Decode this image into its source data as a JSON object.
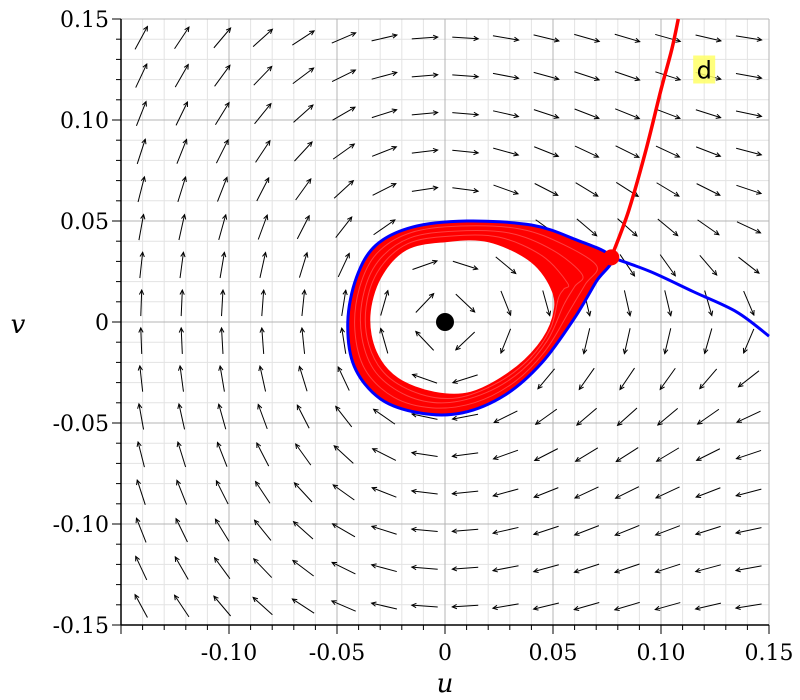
{
  "chart_data": {
    "type": "phase-portrait",
    "xlabel": "u",
    "ylabel": "v",
    "xlim": [
      -0.15,
      0.15
    ],
    "ylim": [
      -0.15,
      0.15
    ],
    "x_ticks": [
      {
        "value": -0.1,
        "label": "-0.10"
      },
      {
        "value": -0.05,
        "label": "-0.05"
      },
      {
        "value": 0,
        "label": "0"
      },
      {
        "value": 0.05,
        "label": "0.05"
      },
      {
        "value": 0.1,
        "label": "0.10"
      },
      {
        "value": 0.15,
        "label": "0.15"
      }
    ],
    "y_ticks": [
      {
        "value": 0.15,
        "label": "0.15"
      },
      {
        "value": 0.1,
        "label": "0.10"
      },
      {
        "value": 0.05,
        "label": "0.05"
      },
      {
        "value": 0,
        "label": "0"
      },
      {
        "value": -0.05,
        "label": "-0.05"
      },
      {
        "value": -0.1,
        "label": "-0.10"
      },
      {
        "value": -0.15,
        "label": "-0.15"
      }
    ],
    "grid": true,
    "equilibrium": {
      "u": 0,
      "v": 0,
      "color": "#000000"
    },
    "saddle_point": {
      "u": 0.077,
      "v": 0.032,
      "color": "#ff0000"
    },
    "annotation": {
      "text": "d",
      "u": 0.12,
      "v": 0.125,
      "background": "#ffff66"
    },
    "series": [
      {
        "style": "loop",
        "color": "#0000ff",
        "points": [
          [
            0.077,
            0.032
          ],
          [
            0.06,
            0.041
          ],
          [
            0.04,
            0.048
          ],
          [
            0.01,
            0.05
          ],
          [
            -0.015,
            0.047
          ],
          [
            -0.032,
            0.038
          ],
          [
            -0.041,
            0.022
          ],
          [
            -0.045,
            0.0
          ],
          [
            -0.042,
            -0.022
          ],
          [
            -0.03,
            -0.038
          ],
          [
            -0.012,
            -0.045
          ],
          [
            0.008,
            -0.045
          ],
          [
            0.028,
            -0.036
          ],
          [
            0.045,
            -0.02
          ],
          [
            0.06,
            0.002
          ],
          [
            0.07,
            0.02
          ],
          [
            0.077,
            0.032
          ]
        ]
      },
      {
        "style": "line",
        "color": "#0000ff",
        "points": [
          [
            0.077,
            0.032
          ],
          [
            0.095,
            0.025
          ],
          [
            0.115,
            0.015
          ],
          [
            0.135,
            0.005
          ],
          [
            0.15,
            -0.007
          ]
        ]
      },
      {
        "style": "line",
        "color": "#ff0000",
        "points": [
          [
            0.077,
            0.032
          ],
          [
            0.085,
            0.055
          ],
          [
            0.093,
            0.085
          ],
          [
            0.1,
            0.115
          ],
          [
            0.105,
            0.135
          ],
          [
            0.108,
            0.15
          ]
        ]
      },
      {
        "style": "band",
        "color": "#ff0000",
        "outer": [
          [
            0.077,
            0.032
          ],
          [
            0.06,
            0.041
          ],
          [
            0.04,
            0.048
          ],
          [
            0.01,
            0.05
          ],
          [
            -0.015,
            0.047
          ],
          [
            -0.032,
            0.038
          ],
          [
            -0.041,
            0.022
          ],
          [
            -0.045,
            0.0
          ],
          [
            -0.042,
            -0.022
          ],
          [
            -0.03,
            -0.038
          ],
          [
            -0.012,
            -0.045
          ],
          [
            0.008,
            -0.045
          ],
          [
            0.028,
            -0.036
          ],
          [
            0.045,
            -0.02
          ],
          [
            0.06,
            0.002
          ],
          [
            0.07,
            0.02
          ],
          [
            0.077,
            0.032
          ]
        ],
        "inner": [
          [
            0.05,
            0.015
          ],
          [
            0.04,
            0.03
          ],
          [
            0.02,
            0.04
          ],
          [
            0.0,
            0.04
          ],
          [
            -0.018,
            0.036
          ],
          [
            -0.03,
            0.022
          ],
          [
            -0.035,
            0.003
          ],
          [
            -0.032,
            -0.015
          ],
          [
            -0.022,
            -0.028
          ],
          [
            -0.005,
            -0.035
          ],
          [
            0.012,
            -0.035
          ],
          [
            0.03,
            -0.025
          ],
          [
            0.043,
            -0.012
          ],
          [
            0.05,
            0.002
          ],
          [
            0.05,
            0.015
          ]
        ]
      }
    ]
  }
}
